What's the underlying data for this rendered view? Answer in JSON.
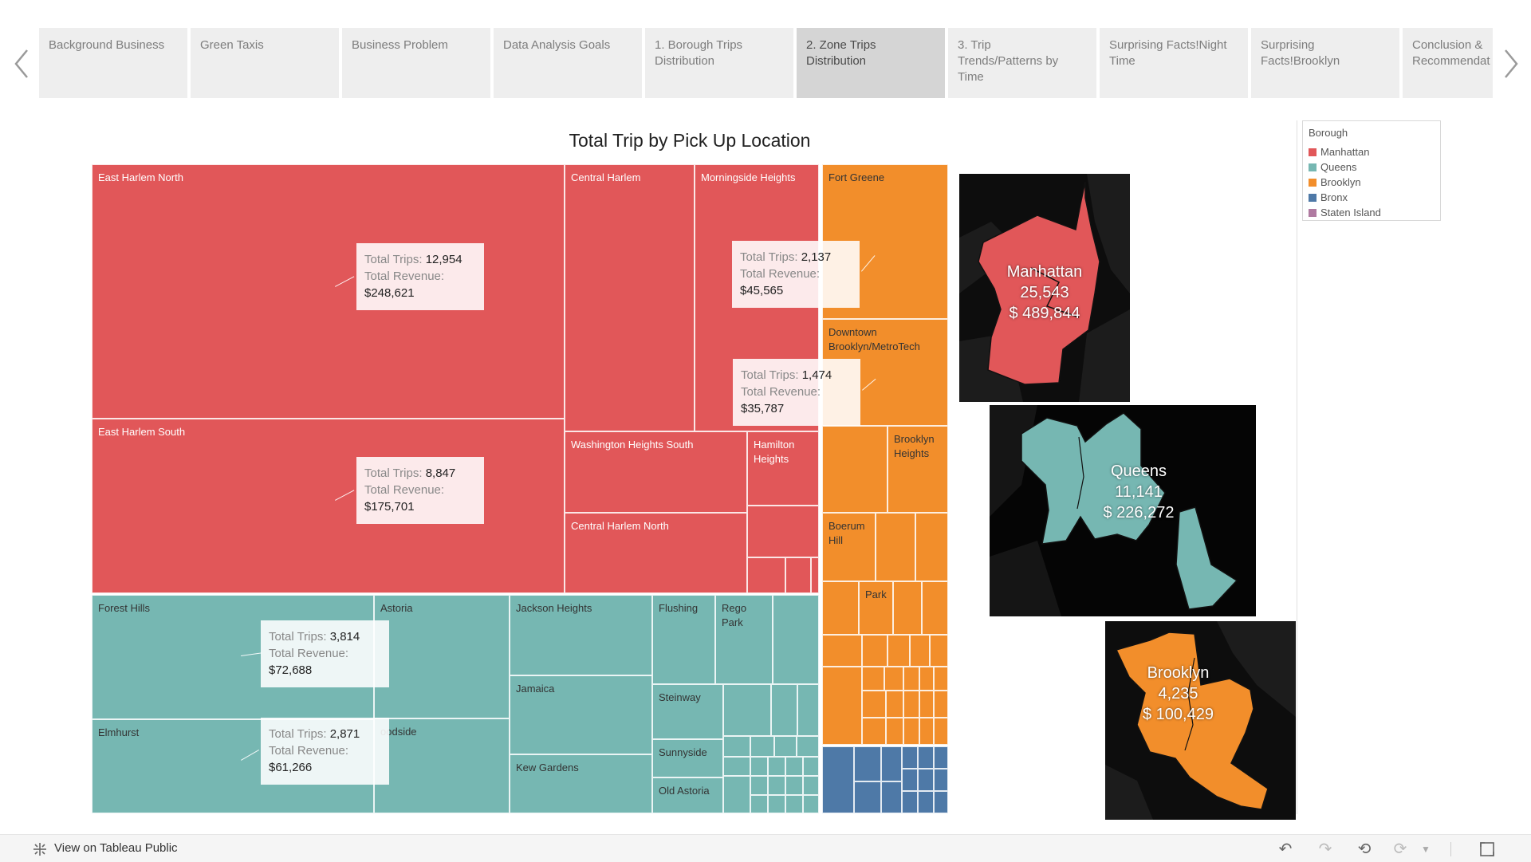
{
  "story": {
    "tabs": [
      "Background Business",
      "Green Taxis",
      "Business Problem",
      "Data Analysis Goals",
      "1. Borough Trips\nDistribution",
      "2. Zone Trips\nDistribution",
      "3. Trip\nTrends/Patterns by\nTime",
      "Surprising Facts!Night\nTime",
      "Surprising\nFacts!Brooklyn",
      "Conclusion &\nRecommendat"
    ],
    "active_index": 5
  },
  "chart": {
    "title": "Total Trip by Pick Up Location",
    "tooltip_trips_label": "Total Trips:",
    "tooltip_revenue_label": "Total Revenue:",
    "zone_labels": {
      "east_harlem_north": "East Harlem North",
      "east_harlem_south": "East Harlem South",
      "central_harlem": "Central Harlem",
      "morningside_heights": "Morningside Heights",
      "washington_heights_south": "Washington Heights South",
      "hamilton_heights": "Hamilton\nHeights",
      "central_harlem_north": "Central Harlem North",
      "fort_greene": "Fort Greene",
      "downtown_brooklyn": "Downtown\nBrooklyn/MetroTech",
      "brooklyn_heights": "Brooklyn\nHeights",
      "boerum_hill": "Boerum\nHill",
      "park": "Park",
      "forest_hills": "Forest Hills",
      "astoria": "Astoria",
      "elmhurst": "Elmhurst",
      "woodside": "oodside",
      "jackson_heights": "Jackson Heights",
      "jamaica": "Jamaica",
      "kew_gardens": "Kew Gardens",
      "flushing": "Flushing",
      "rego_park": "Rego\nPark",
      "steinway": "Steinway",
      "sunnyside": "Sunnyside",
      "old_astoria": "Old Astoria"
    },
    "tooltips": {
      "east_harlem_north": {
        "trips": "12,954",
        "revenue": "$248,621"
      },
      "east_harlem_south": {
        "trips": "8,847",
        "revenue": "$175,701"
      },
      "central_harlem": {
        "trips": "2,137",
        "revenue": "$45,565"
      },
      "morningside_heights": {
        "trips": "1,474",
        "revenue": "$35,787"
      },
      "forest_hills": {
        "trips": "3,814",
        "revenue": "$72,688"
      },
      "elmhurst": {
        "trips": "2,871",
        "revenue": "$61,266"
      }
    }
  },
  "maps": {
    "manhattan": {
      "name": "Manhattan",
      "trips": "25,543",
      "revenue": "$ 489,844"
    },
    "queens": {
      "name": "Queens",
      "trips": "11,141",
      "revenue": "$ 226,272"
    },
    "brooklyn": {
      "name": "Brooklyn",
      "trips": "4,235",
      "revenue": "$ 100,429"
    }
  },
  "legend": {
    "title": "Borough",
    "items": [
      {
        "label": "Manhattan",
        "color": "#e15759"
      },
      {
        "label": "Queens",
        "color": "#76b7b2"
      },
      {
        "label": "Brooklyn",
        "color": "#f28e2b"
      },
      {
        "label": "Bronx",
        "color": "#4e79a7"
      },
      {
        "label": "Staten Island",
        "color": "#b07aa1"
      }
    ]
  },
  "toolbar": {
    "view_on_public": "View on Tableau Public"
  },
  "colors": {
    "manhattan": "#e15759",
    "queens": "#76b7b2",
    "brooklyn": "#f28e2b",
    "bronx": "#4e79a7",
    "map_bg": "#0d0d0d"
  }
}
